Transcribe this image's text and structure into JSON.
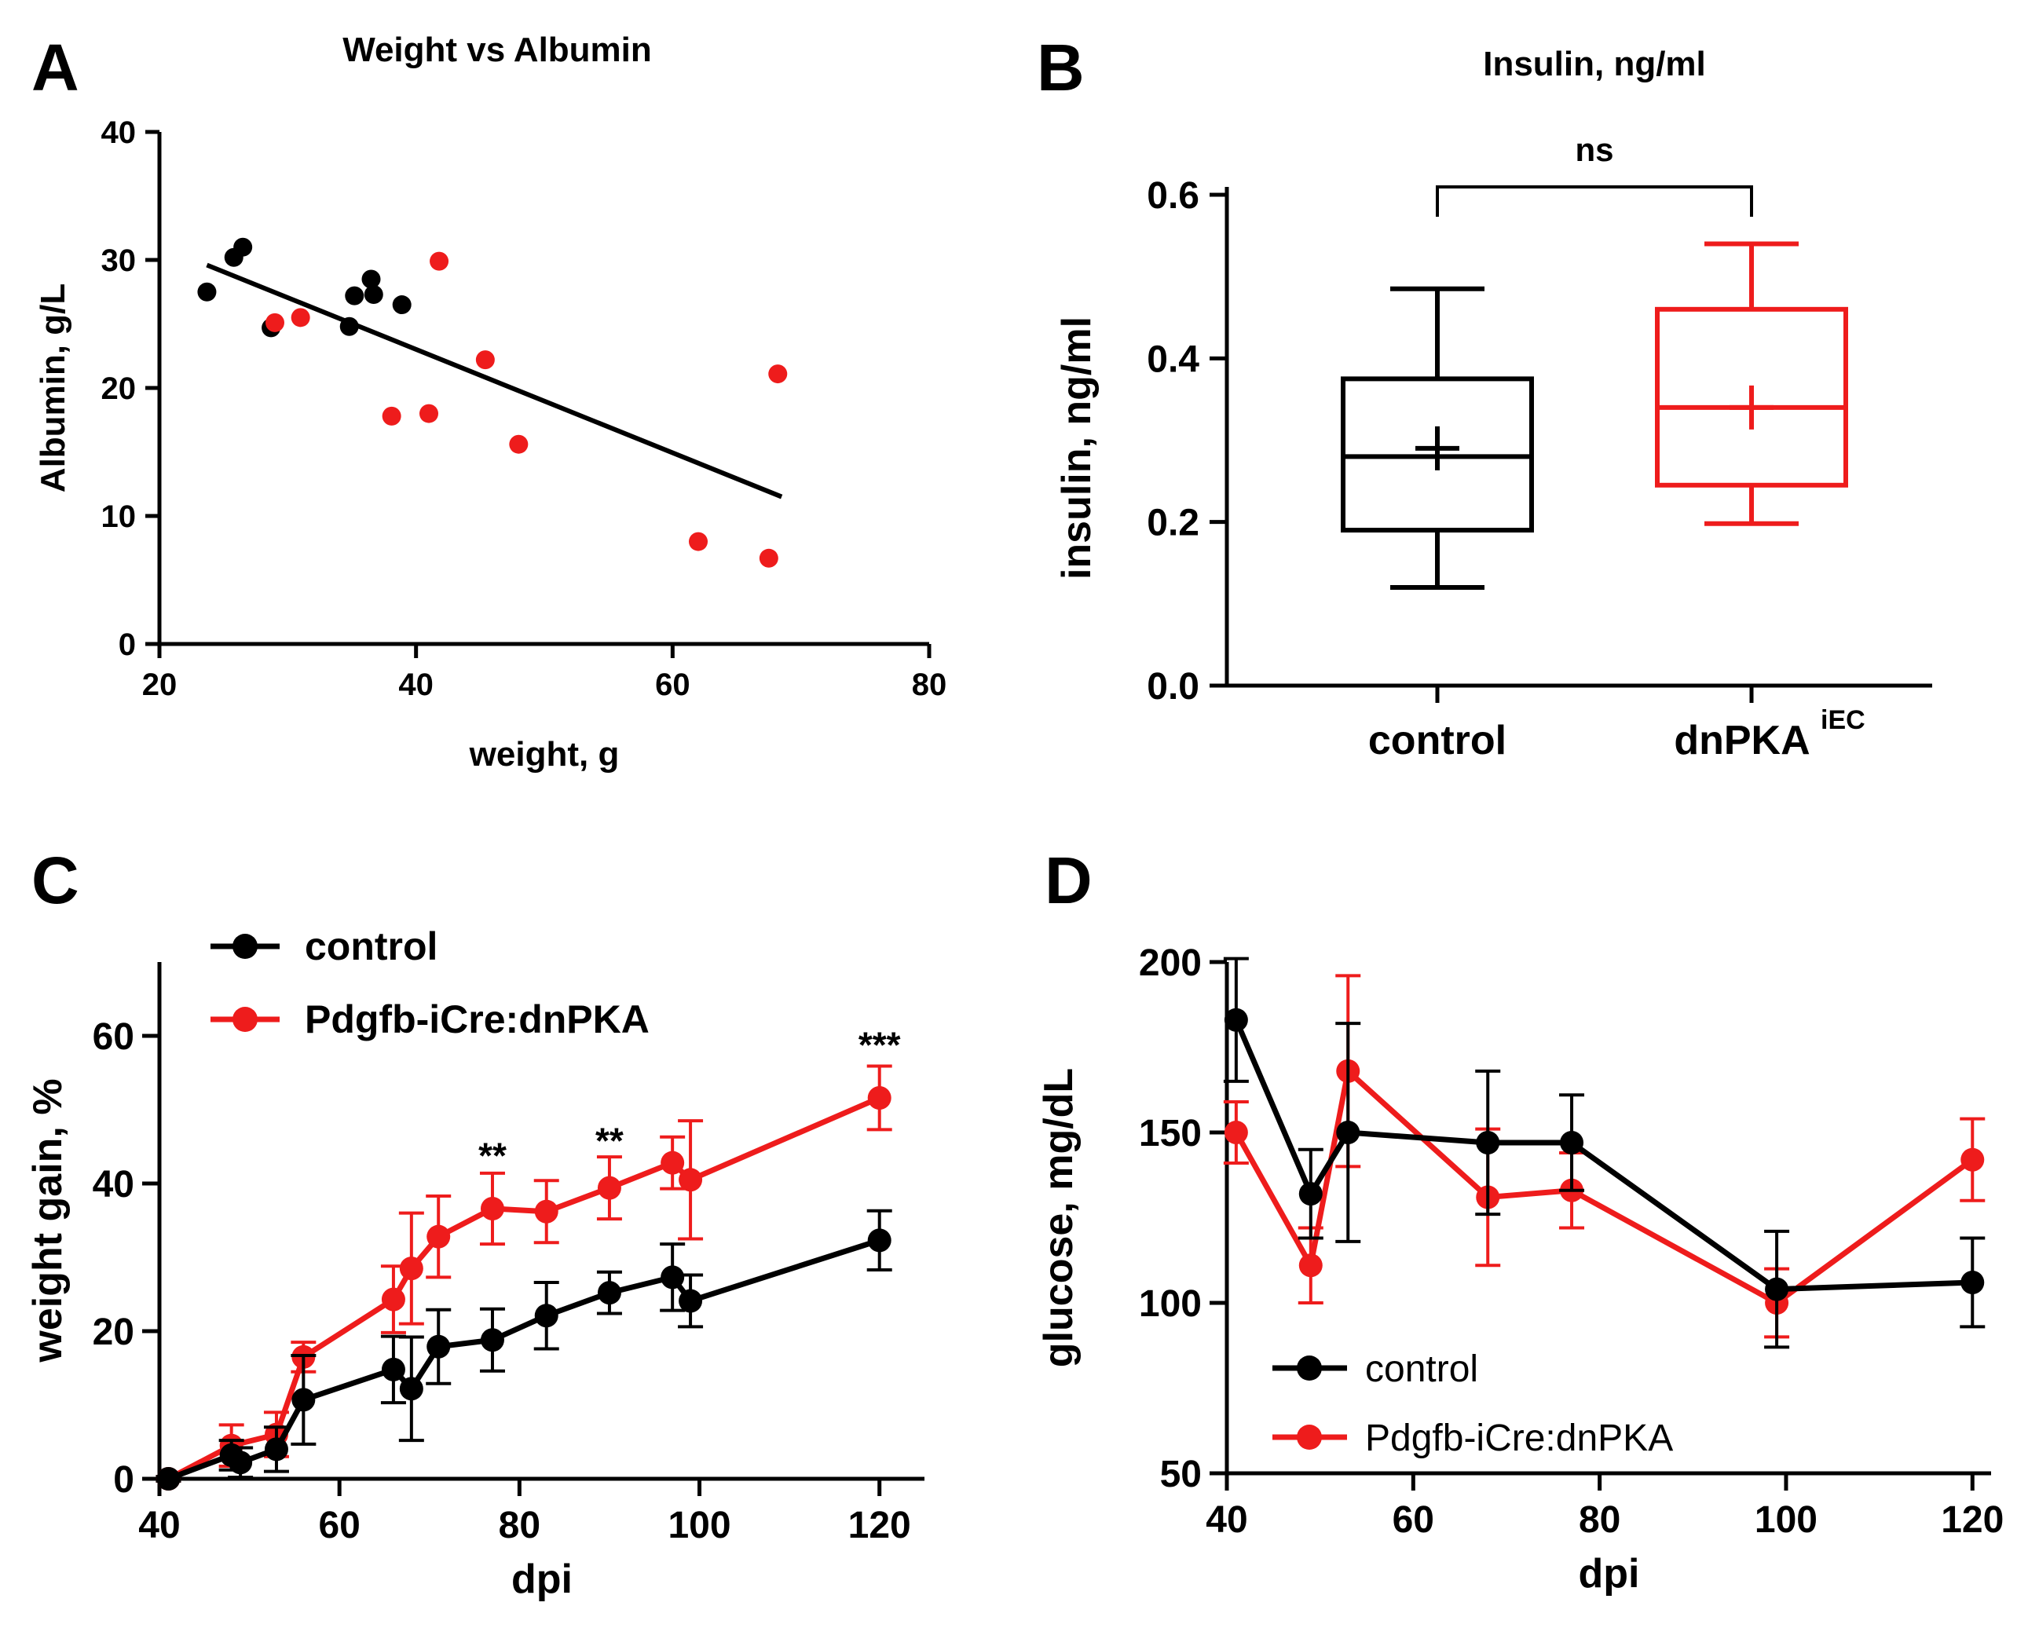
{
  "colors": {
    "control": "#000000",
    "treated": "#ee1c1c"
  },
  "chart_data": [
    {
      "panel": "A",
      "type": "scatter",
      "title": "Weight vs Albumin",
      "xlabel": "weight, g",
      "ylabel": "Albumin, g/L",
      "xlim": [
        20,
        80
      ],
      "ylim": [
        0,
        40
      ],
      "xticks": [
        "20",
        "40",
        "60",
        "80"
      ],
      "yticks": [
        "0",
        "10",
        "20",
        "30",
        "40"
      ],
      "series": [
        {
          "name": "control",
          "color": "#000000",
          "points": [
            [
              23.7,
              27.5
            ],
            [
              25.8,
              30.2
            ],
            [
              26.5,
              31.0
            ],
            [
              28.7,
              24.7
            ],
            [
              34.8,
              24.8
            ],
            [
              35.2,
              27.2
            ],
            [
              36.5,
              28.5
            ],
            [
              36.7,
              27.3
            ],
            [
              38.9,
              26.5
            ]
          ]
        },
        {
          "name": "dnPKA",
          "color": "#ee1c1c",
          "points": [
            [
              29.0,
              25.1
            ],
            [
              31.0,
              25.5
            ],
            [
              38.1,
              17.8
            ],
            [
              41.0,
              18.0
            ],
            [
              41.8,
              29.9
            ],
            [
              45.4,
              22.2
            ],
            [
              48.0,
              15.6
            ],
            [
              62.0,
              8.0
            ],
            [
              67.5,
              6.7
            ],
            [
              68.2,
              21.1
            ]
          ]
        }
      ],
      "fit_line": [
        [
          23.7,
          29.6
        ],
        [
          68.5,
          11.5
        ]
      ]
    },
    {
      "panel": "B",
      "type": "box",
      "title": "Insulin, ng/ml",
      "xlabel": "",
      "ylabel": "insulin, ng/ml",
      "ylim": [
        0.0,
        0.6
      ],
      "yticks": [
        "0.0",
        "0.2",
        "0.4",
        "0.6"
      ],
      "categories": [
        "control",
        "dnPKA"
      ],
      "category_superscript": [
        "",
        "iEC"
      ],
      "boxes": [
        {
          "name": "control",
          "color": "#000000",
          "min": 0.12,
          "q1": 0.19,
          "median": 0.28,
          "q3": 0.375,
          "max": 0.485,
          "mean": 0.29
        },
        {
          "name": "dnPKA",
          "color": "#ee1c1c",
          "min": 0.198,
          "q1": 0.245,
          "median": 0.34,
          "q3": 0.46,
          "max": 0.54,
          "mean": 0.34
        }
      ],
      "annotation": "ns"
    },
    {
      "panel": "C",
      "type": "line",
      "title": "",
      "xlabel": "dpi",
      "ylabel": "weight gain, %",
      "xlim": [
        40,
        125
      ],
      "ylim": [
        0,
        70
      ],
      "xticks": [
        "40",
        "60",
        "80",
        "100",
        "120"
      ],
      "yticks": [
        "0",
        "20",
        "40",
        "60"
      ],
      "legend_position": "top-left",
      "series": [
        {
          "name": "control",
          "color": "#000000",
          "x": [
            41,
            48,
            49,
            53,
            56,
            66,
            68,
            71,
            77,
            83,
            90,
            97,
            99,
            120
          ],
          "y": [
            0,
            3.2,
            2.2,
            4.0,
            10.7,
            14.8,
            12.2,
            17.9,
            18.8,
            22.1,
            25.2,
            27.3,
            24.1,
            32.3
          ],
          "err": [
            0.3,
            2.0,
            2.0,
            3.0,
            6.0,
            4.5,
            7.0,
            5.0,
            4.2,
            4.5,
            2.8,
            4.5,
            3.5,
            4.0
          ]
        },
        {
          "name": "Pdgfb-iCre:dnPKA",
          "color": "#ee1c1c",
          "x": [
            41,
            48,
            53,
            56,
            66,
            68,
            71,
            77,
            83,
            90,
            97,
            99,
            120
          ],
          "y": [
            0,
            4.5,
            6.0,
            16.5,
            24.3,
            28.5,
            32.8,
            36.6,
            36.2,
            39.4,
            42.8,
            40.5,
            51.6
          ],
          "err": [
            0.3,
            2.8,
            3.0,
            2.0,
            4.5,
            7.5,
            5.5,
            4.8,
            4.2,
            4.2,
            3.5,
            8.0,
            4.3
          ]
        }
      ],
      "annotations": [
        {
          "text": "**",
          "x": 77,
          "y": 44
        },
        {
          "text": "**",
          "x": 90,
          "y": 46
        },
        {
          "text": "***",
          "x": 120,
          "y": 59
        }
      ]
    },
    {
      "panel": "D",
      "type": "line",
      "title": "",
      "xlabel": "dpi",
      "ylabel": "glucose, mg/dL",
      "xlim": [
        40,
        122
      ],
      "ylim": [
        50,
        200
      ],
      "xticks": [
        "40",
        "60",
        "80",
        "100",
        "120"
      ],
      "yticks": [
        "50",
        "100",
        "150",
        "200"
      ],
      "legend_position": "bottom-left",
      "series": [
        {
          "name": "control",
          "color": "#000000",
          "x": [
            41,
            49,
            53,
            68,
            77,
            99,
            120
          ],
          "y": [
            183,
            132,
            150,
            147,
            147,
            104,
            106
          ],
          "err": [
            18,
            13,
            32,
            21,
            14,
            17,
            13
          ]
        },
        {
          "name": "Pdgfb-iCre:dnPKA",
          "color": "#ee1c1c",
          "x": [
            41,
            49,
            53,
            68,
            77,
            99,
            120
          ],
          "y": [
            150,
            111,
            168,
            131,
            133,
            100,
            142
          ],
          "err": [
            9,
            11,
            28,
            20,
            11,
            10,
            12
          ]
        }
      ]
    }
  ]
}
